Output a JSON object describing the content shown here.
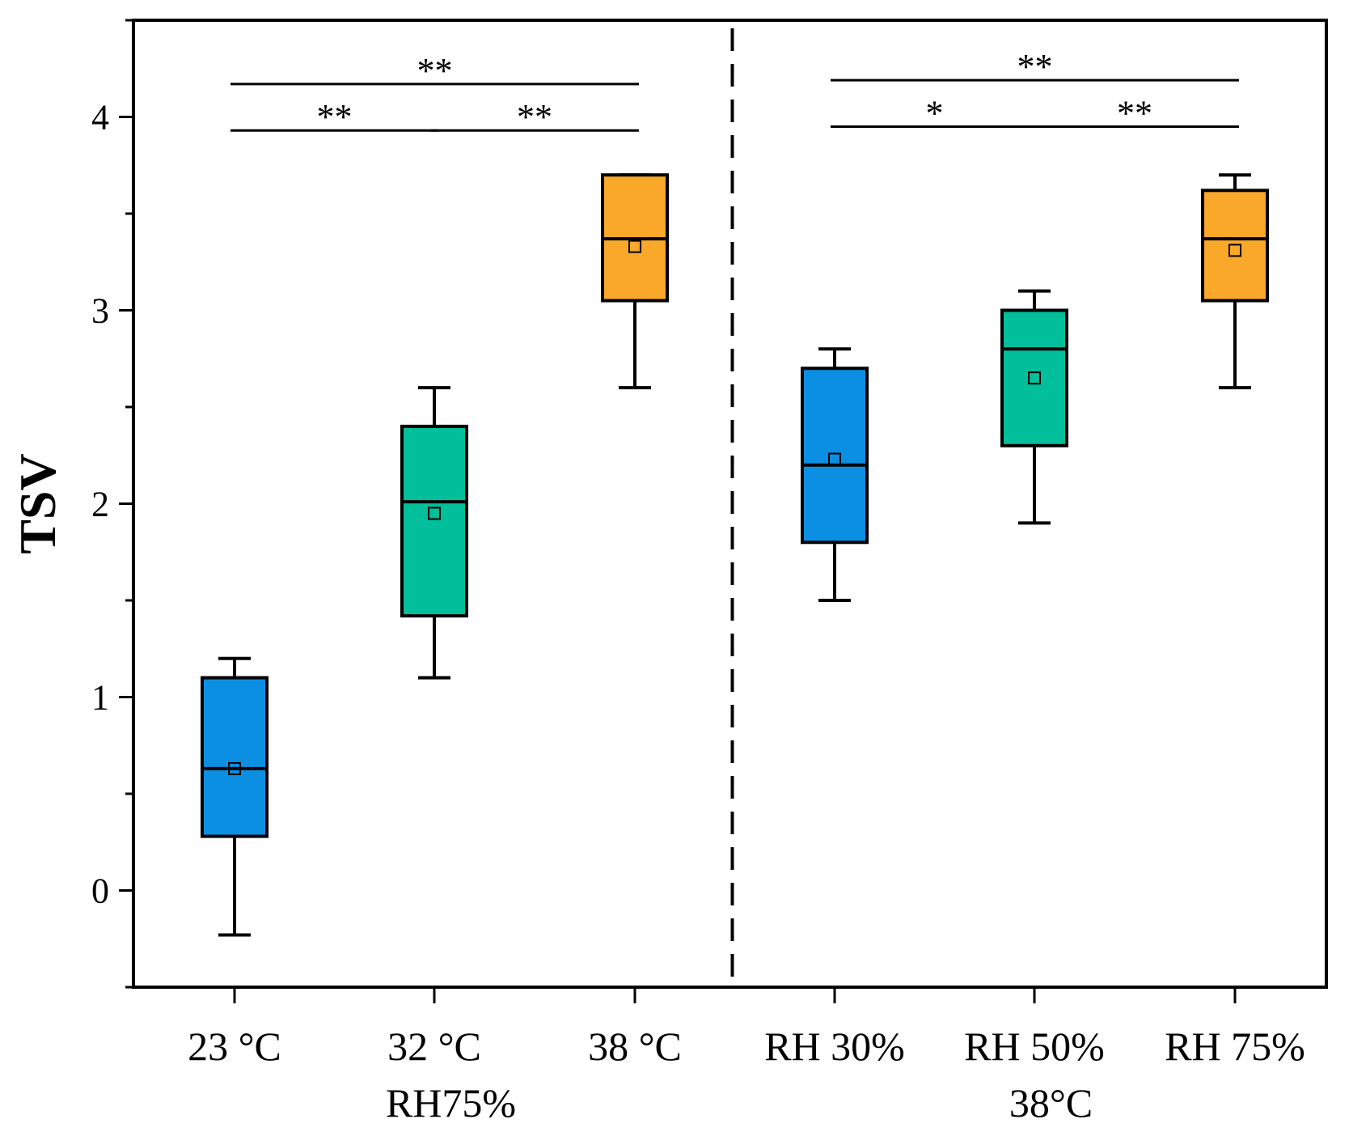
{
  "chart_data": {
    "type": "box",
    "ylabel": "TSV",
    "ylim": [
      -0.5,
      4.5
    ],
    "yticks": [
      0,
      1,
      2,
      3,
      4
    ],
    "categories": [
      "23 °C",
      "32 °C",
      "38 °C",
      "RH 30%",
      "RH 50%",
      "RH 75%"
    ],
    "group_labels": [
      {
        "label": "RH75%",
        "categories": [
          0,
          1,
          2
        ]
      },
      {
        "label": "38°C",
        "categories": [
          3,
          4,
          5
        ]
      }
    ],
    "boxes": [
      {
        "category": "23 °C",
        "min": -0.23,
        "q1": 0.28,
        "median": 0.63,
        "q3": 1.1,
        "max": 1.2,
        "mean": 0.63,
        "color": "#0A8FE3"
      },
      {
        "category": "32 °C",
        "min": 1.1,
        "q1": 1.42,
        "median": 2.01,
        "q3": 2.4,
        "max": 2.6,
        "mean": 1.95,
        "color": "#00BF9A"
      },
      {
        "category": "38 °C",
        "min": 2.6,
        "q1": 3.05,
        "median": 3.37,
        "q3": 3.7,
        "max": 3.7,
        "mean": 3.33,
        "color": "#F9A82A"
      },
      {
        "category": "RH 30%",
        "min": 1.5,
        "q1": 1.8,
        "median": 2.2,
        "q3": 2.7,
        "max": 2.8,
        "mean": 2.23,
        "color": "#0A8FE3"
      },
      {
        "category": "RH 50%",
        "min": 1.9,
        "q1": 2.3,
        "median": 2.8,
        "q3": 3.0,
        "max": 3.1,
        "mean": 2.65,
        "color": "#00BF9A"
      },
      {
        "category": "RH 75%",
        "min": 2.6,
        "q1": 3.05,
        "median": 3.37,
        "q3": 3.62,
        "max": 3.7,
        "mean": 3.31,
        "color": "#F9A82A"
      }
    ],
    "divider_after_category": 2,
    "significance": [
      {
        "from": 0,
        "to": 2,
        "label": "**",
        "y": 4.17
      },
      {
        "from": 0,
        "to": 1,
        "label": "**",
        "y": 3.93
      },
      {
        "from": 1,
        "to": 2,
        "label": "**",
        "y": 3.93
      },
      {
        "from": 3,
        "to": 5,
        "label": "**",
        "y": 4.19
      },
      {
        "from": 3,
        "to": 4,
        "label": "*",
        "y": 3.95
      },
      {
        "from": 4,
        "to": 5,
        "label": "**",
        "y": 3.95
      }
    ]
  }
}
